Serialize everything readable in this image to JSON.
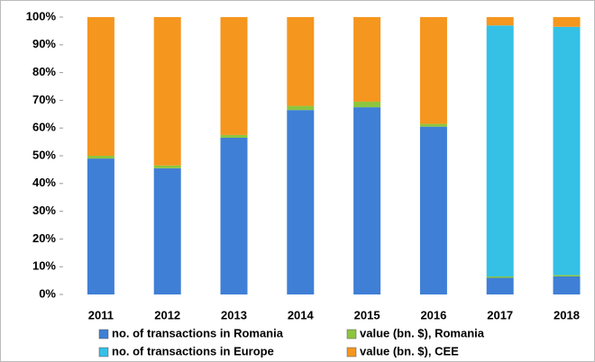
{
  "chart_data": {
    "type": "stacked_bar",
    "categories": [
      "2011",
      "2012",
      "2013",
      "2014",
      "2015",
      "2016",
      "2017",
      "2018"
    ],
    "series": [
      {
        "name": "no. of transactions in Romania",
        "color": "#3f7fd6",
        "values": [
          49,
          45.5,
          56.5,
          66.5,
          67.5,
          60.5,
          6,
          6.5
        ]
      },
      {
        "name": "value (bn. $), Romania",
        "color": "#8cc63f",
        "values": [
          1,
          1,
          1,
          1.5,
          2,
          1,
          0.5,
          0.5
        ]
      },
      {
        "name": "no. of transactions in Europe",
        "color": "#35c0e6",
        "values": [
          0,
          0,
          0,
          0,
          0,
          0,
          90.5,
          89.5
        ]
      },
      {
        "name": "value (bn. $), CEE",
        "color": "#f5961e",
        "values": [
          50,
          53.5,
          42.5,
          32,
          30.5,
          38.5,
          3,
          3.5
        ]
      }
    ],
    "ylim": [
      0,
      100
    ],
    "yticks": [
      {
        "value": 0,
        "label": "0%"
      },
      {
        "value": 10,
        "label": "10%"
      },
      {
        "value": 20,
        "label": "20%"
      },
      {
        "value": 30,
        "label": "30%"
      },
      {
        "value": 40,
        "label": "40%"
      },
      {
        "value": 50,
        "label": "50%"
      },
      {
        "value": 60,
        "label": "60%"
      },
      {
        "value": 70,
        "label": "70%"
      },
      {
        "value": 80,
        "label": "80%"
      },
      {
        "value": 90,
        "label": "90%"
      },
      {
        "value": 100,
        "label": "100%"
      }
    ],
    "grid": false
  }
}
